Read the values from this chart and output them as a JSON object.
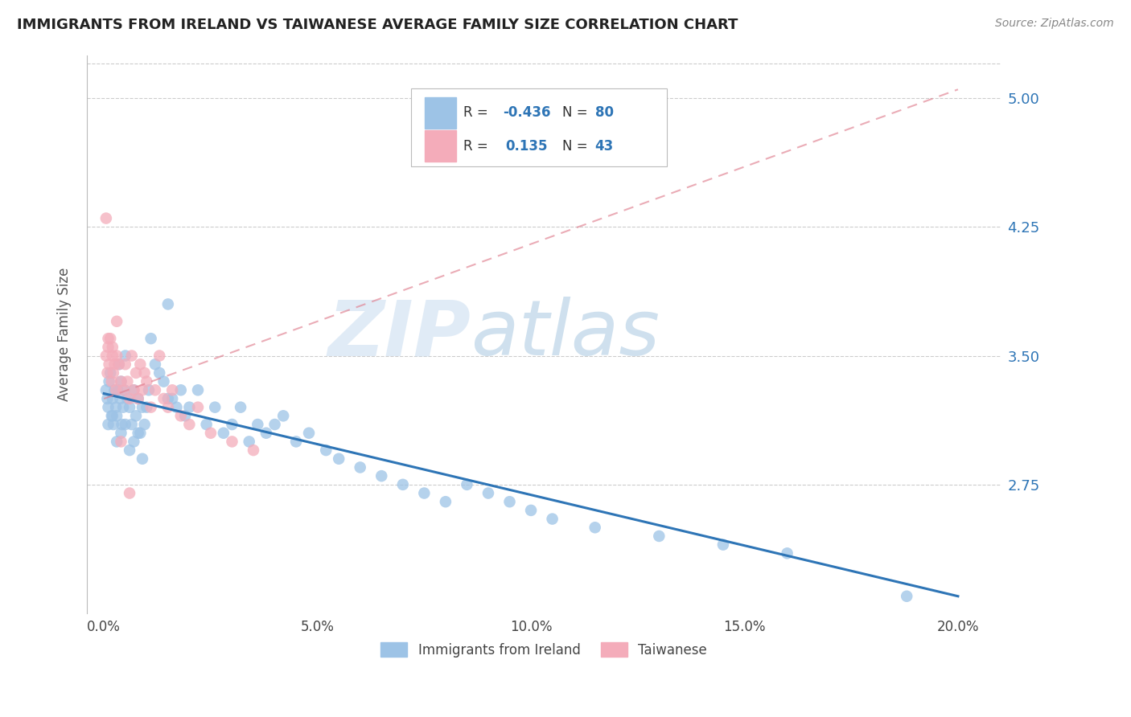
{
  "title": "IMMIGRANTS FROM IRELAND VS TAIWANESE AVERAGE FAMILY SIZE CORRELATION CHART",
  "source": "Source: ZipAtlas.com",
  "ylabel": "Average Family Size",
  "yticks": [
    2.75,
    3.5,
    4.25,
    5.0
  ],
  "ytick_labels": [
    "2.75",
    "3.50",
    "4.25",
    "5.00"
  ],
  "xticks": [
    0,
    5,
    10,
    15,
    20
  ],
  "xtick_labels": [
    "0.0%",
    "5.0%",
    "10.0%",
    "15.0%",
    "20.0%"
  ],
  "ylim_bottom": 2.0,
  "ylim_top": 5.25,
  "xlim_left": -0.4,
  "xlim_right": 21.0,
  "ireland_color": "#9DC3E6",
  "taiwanese_color": "#F4ACBA",
  "ireland_R": -0.436,
  "ireland_N": 80,
  "taiwanese_R": 0.135,
  "taiwanese_N": 43,
  "ireland_line_color": "#2E75B6",
  "taiwanese_line_color": "#E08090",
  "legend_label_ireland": "Immigrants from Ireland",
  "legend_label_taiwanese": "Taiwanese",
  "watermark_zip": "ZIP",
  "watermark_atlas": "atlas",
  "title_fontsize": 13,
  "source_fontsize": 10,
  "ireland_x": [
    0.05,
    0.08,
    0.1,
    0.12,
    0.15,
    0.18,
    0.2,
    0.22,
    0.25,
    0.28,
    0.3,
    0.32,
    0.35,
    0.38,
    0.4,
    0.42,
    0.45,
    0.48,
    0.5,
    0.55,
    0.6,
    0.65,
    0.7,
    0.75,
    0.8,
    0.85,
    0.9,
    0.95,
    1.0,
    1.05,
    1.1,
    1.2,
    1.3,
    1.4,
    1.5,
    1.6,
    1.7,
    1.8,
    1.9,
    2.0,
    2.2,
    2.4,
    2.6,
    2.8,
    3.0,
    3.2,
    3.4,
    3.6,
    3.8,
    4.0,
    4.2,
    4.5,
    4.8,
    5.2,
    5.5,
    6.0,
    6.5,
    7.0,
    7.5,
    8.0,
    8.5,
    9.0,
    9.5,
    10.0,
    10.5,
    11.5,
    13.0,
    14.5,
    16.0,
    18.8,
    0.1,
    0.2,
    0.3,
    0.4,
    0.5,
    0.6,
    0.7,
    0.8,
    0.9,
    1.5
  ],
  "ireland_y": [
    3.3,
    3.25,
    3.2,
    3.35,
    3.4,
    3.15,
    3.25,
    3.1,
    3.3,
    3.2,
    3.15,
    3.3,
    3.45,
    3.25,
    3.35,
    3.1,
    3.2,
    3.3,
    3.5,
    3.25,
    3.2,
    3.1,
    3.3,
    3.15,
    3.25,
    3.05,
    3.2,
    3.1,
    3.2,
    3.3,
    3.6,
    3.45,
    3.4,
    3.35,
    3.8,
    3.25,
    3.2,
    3.3,
    3.15,
    3.2,
    3.3,
    3.1,
    3.2,
    3.05,
    3.1,
    3.2,
    3.0,
    3.1,
    3.05,
    3.1,
    3.15,
    3.0,
    3.05,
    2.95,
    2.9,
    2.85,
    2.8,
    2.75,
    2.7,
    2.65,
    2.75,
    2.7,
    2.65,
    2.6,
    2.55,
    2.5,
    2.45,
    2.4,
    2.35,
    2.1,
    3.1,
    3.15,
    3.0,
    3.05,
    3.1,
    2.95,
    3.0,
    3.05,
    2.9,
    3.25
  ],
  "taiwanese_x": [
    0.05,
    0.08,
    0.1,
    0.12,
    0.15,
    0.18,
    0.2,
    0.22,
    0.25,
    0.28,
    0.3,
    0.35,
    0.4,
    0.45,
    0.5,
    0.55,
    0.6,
    0.65,
    0.7,
    0.75,
    0.8,
    0.85,
    0.9,
    0.95,
    1.0,
    1.1,
    1.2,
    1.3,
    1.4,
    1.5,
    1.6,
    1.8,
    2.0,
    2.2,
    2.5,
    3.0,
    3.5,
    0.1,
    0.2,
    0.3,
    0.05,
    0.4,
    0.6
  ],
  "taiwanese_y": [
    3.5,
    3.4,
    3.55,
    3.45,
    3.6,
    3.35,
    3.5,
    3.4,
    3.45,
    3.3,
    3.5,
    3.45,
    3.35,
    3.3,
    3.45,
    3.35,
    3.25,
    3.5,
    3.3,
    3.4,
    3.25,
    3.45,
    3.3,
    3.4,
    3.35,
    3.2,
    3.3,
    3.5,
    3.25,
    3.2,
    3.3,
    3.15,
    3.1,
    3.2,
    3.05,
    3.0,
    2.95,
    3.6,
    3.55,
    3.7,
    4.3,
    3.0,
    2.7
  ],
  "ireland_trendline_x0": 0.0,
  "ireland_trendline_y0": 3.28,
  "ireland_trendline_x1": 20.0,
  "ireland_trendline_y1": 2.1,
  "taiwanese_trendline_x0": 0.0,
  "taiwanese_trendline_y0": 3.25,
  "taiwanese_trendline_x1": 20.0,
  "taiwanese_trendline_y1": 5.05
}
